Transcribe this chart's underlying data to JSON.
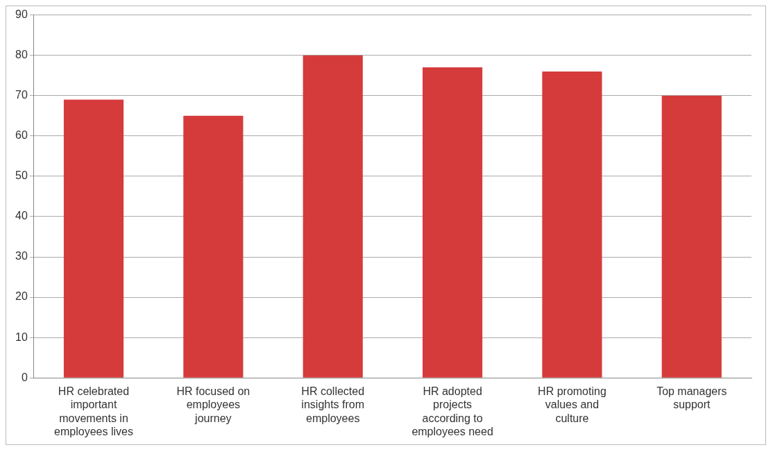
{
  "chart_data": {
    "type": "bar",
    "categories": [
      "HR celebrated important movements in employees lives",
      "HR focused on employees journey",
      "HR collected insights from employees",
      "HR adopted projects according to employees need",
      "HR promoting values and culture",
      "Top managers support"
    ],
    "values": [
      69,
      65,
      80,
      77,
      76,
      70
    ],
    "color": "#d63b3b",
    "ylim": [
      0,
      90
    ],
    "yticks": [
      0,
      10,
      20,
      30,
      40,
      50,
      60,
      70,
      80,
      90
    ],
    "grid": "y",
    "legend": false
  }
}
